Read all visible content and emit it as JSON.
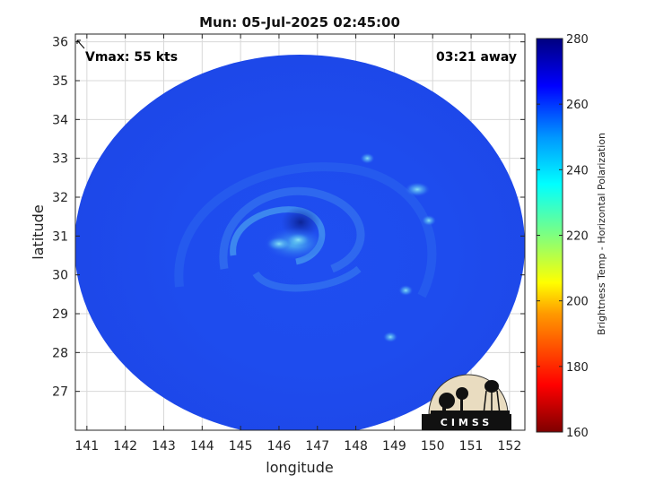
{
  "title": "Mun: 05-Jul-2025 02:45:00",
  "vmax_label": "Vmax: 55 kts",
  "time_away": "03:21 away",
  "xlabel": "longitude",
  "ylabel": "latitude",
  "colorbar": {
    "label": "Brightness Temp - Horizontal Polarization",
    "ticks": [
      160,
      180,
      200,
      220,
      240,
      260,
      280
    ],
    "range": [
      160,
      280
    ]
  },
  "logo_text": "CIMSS",
  "map": {
    "lon_ticks": [
      141,
      142,
      143,
      144,
      145,
      146,
      147,
      148,
      149,
      150,
      151,
      152
    ],
    "lat_ticks": [
      27,
      28,
      29,
      30,
      31,
      32,
      33,
      34,
      35,
      36
    ],
    "lon_range": [
      140.7,
      152.4
    ],
    "lat_range": [
      26.0,
      36.2
    ],
    "swath_center": [
      146.65,
      31.2
    ],
    "storm_center": [
      146.3,
      30.85
    ],
    "background_tb": 262,
    "features": [
      {
        "lon": 146.0,
        "lat": 30.8,
        "tb": 236
      },
      {
        "lon": 146.5,
        "lat": 30.9,
        "tb": 240
      },
      {
        "lon": 149.6,
        "lat": 32.2,
        "tb": 244
      },
      {
        "lon": 149.9,
        "lat": 31.4,
        "tb": 246
      },
      {
        "lon": 149.3,
        "lat": 29.6,
        "tb": 246
      },
      {
        "lon": 148.9,
        "lat": 28.4,
        "tb": 248
      },
      {
        "lon": 148.3,
        "lat": 33.0,
        "tb": 250
      }
    ]
  }
}
